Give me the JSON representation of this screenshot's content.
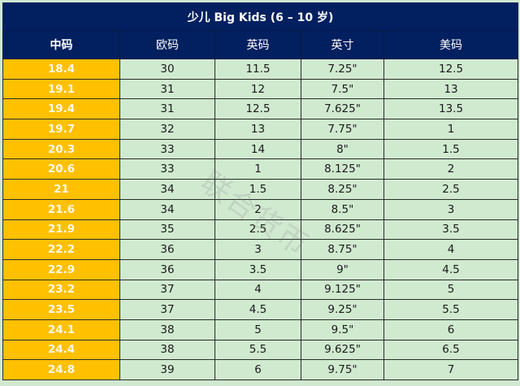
{
  "title": "少儿 Big  Kids (6 – 10 岁)",
  "headers": [
    "中码",
    "欧码",
    "英码",
    "英寸",
    "美码"
  ],
  "rows": [
    [
      "18.4",
      "30",
      "11.5",
      "7.25\"",
      "12.5"
    ],
    [
      "19.1",
      "31",
      "12",
      "7.5\"",
      "13"
    ],
    [
      "19.4",
      "31",
      "12.5",
      "7.625\"",
      "13.5"
    ],
    [
      "19.7",
      "32",
      "13",
      "7.75\"",
      "1"
    ],
    [
      "20.3",
      "33",
      "14",
      "8\"",
      "1.5"
    ],
    [
      "20.6",
      "33",
      "1",
      "8.125\"",
      "2"
    ],
    [
      "21",
      "34",
      "1.5",
      "8.25\"",
      "2.5"
    ],
    [
      "21.6",
      "34",
      "2",
      "8.5\"",
      "3"
    ],
    [
      "21.9",
      "35",
      "2.5",
      "8.625\"",
      "3.5"
    ],
    [
      "22.2",
      "36",
      "3",
      "8.75\"",
      "4"
    ],
    [
      "22.9",
      "36",
      "3.5",
      "9\"",
      "4.5"
    ],
    [
      "23.2",
      "37",
      "4",
      "9.125\"",
      "5"
    ],
    [
      "23.5",
      "37",
      "4.5",
      "9.25\"",
      "5.5"
    ],
    [
      "24.1",
      "38",
      "5",
      "9.5\"",
      "6"
    ],
    [
      "24.4",
      "38",
      "5.5",
      "9.625\"",
      "6.5"
    ],
    [
      "24.8",
      "39",
      "6",
      "9.75\"",
      "7"
    ]
  ],
  "watermark": "联合货币",
  "colors": {
    "header_bg": "#022060",
    "first_col_bg": "#ffc000",
    "cell_bg": "#d0ead0"
  }
}
